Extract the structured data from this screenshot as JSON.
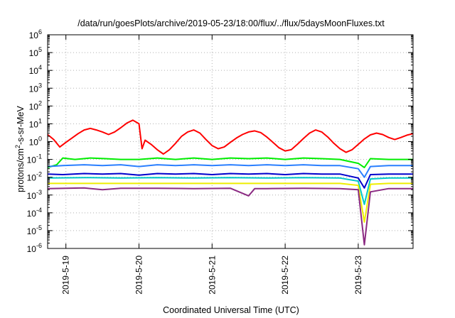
{
  "chart_data": {
    "type": "line",
    "title": "/data/run/goesPlots/archive/2019-05-23/18:00/flux/../flux/5daysMoonFluxes.txt",
    "xlabel": "Coordinated Universal Time (UTC)",
    "ylabel": {
      "prefix": "protons/cm",
      "sup": "2",
      "suffix": "-s-sr-MeV"
    },
    "y_scale": "log",
    "ylim": [
      1e-06,
      1000000.0
    ],
    "y_ticks": [
      {
        "value": 1e-06,
        "base": "10",
        "exp": "-6"
      },
      {
        "value": 1e-05,
        "base": "10",
        "exp": "-5"
      },
      {
        "value": 0.0001,
        "base": "10",
        "exp": "-4"
      },
      {
        "value": 0.001,
        "base": "10",
        "exp": "-3"
      },
      {
        "value": 0.01,
        "base": "10",
        "exp": "-2"
      },
      {
        "value": 0.1,
        "base": "10",
        "exp": "-1"
      },
      {
        "value": 1,
        "base": "10",
        "exp": "0"
      },
      {
        "value": 10,
        "base": "10",
        "exp": "1"
      },
      {
        "value": 100,
        "base": "10",
        "exp": "2"
      },
      {
        "value": 1000,
        "base": "10",
        "exp": "3"
      },
      {
        "value": 10000,
        "base": "10",
        "exp": "4"
      },
      {
        "value": 100000,
        "base": "10",
        "exp": "5"
      },
      {
        "value": 1000000,
        "base": "10",
        "exp": "6"
      }
    ],
    "xlim": [
      "2019-05-18T18:00",
      "2019-05-23T18:00"
    ],
    "x_ticks": [
      {
        "date": "2019-05-19T00:00",
        "label": "2019-5-19"
      },
      {
        "date": "2019-05-20T00:00",
        "label": "2019-5-20"
      },
      {
        "date": "2019-05-21T00:00",
        "label": "2019-5-21"
      },
      {
        "date": "2019-05-22T00:00",
        "label": "2019-5-22"
      },
      {
        "date": "2019-05-23T00:00",
        "label": "2019-5-23"
      }
    ],
    "grid": true,
    "legend": "none",
    "series": [
      {
        "color": "#ff0000",
        "points": [
          [
            "2019-05-18T18:00",
            2.5
          ],
          [
            "2019-05-18T20:00",
            1.3
          ],
          [
            "2019-05-18T22:00",
            0.5
          ],
          [
            "2019-05-19T00:00",
            0.9
          ],
          [
            "2019-05-19T02:00",
            1.6
          ],
          [
            "2019-05-19T04:00",
            2.8
          ],
          [
            "2019-05-19T06:00",
            4.5
          ],
          [
            "2019-05-19T08:00",
            5.5
          ],
          [
            "2019-05-19T10:00",
            4.5
          ],
          [
            "2019-05-19T12:00",
            3.5
          ],
          [
            "2019-05-19T14:00",
            2.5
          ],
          [
            "2019-05-19T16:00",
            3.5
          ],
          [
            "2019-05-19T18:00",
            6
          ],
          [
            "2019-05-19T20:00",
            11
          ],
          [
            "2019-05-19T22:00",
            16
          ],
          [
            "2019-05-20T00:00",
            10
          ],
          [
            "2019-05-20T01:00",
            0.4
          ],
          [
            "2019-05-20T02:00",
            1.2
          ],
          [
            "2019-05-20T04:00",
            0.7
          ],
          [
            "2019-05-20T06:00",
            0.35
          ],
          [
            "2019-05-20T08:00",
            0.2
          ],
          [
            "2019-05-20T10:00",
            0.35
          ],
          [
            "2019-05-20T12:00",
            0.8
          ],
          [
            "2019-05-20T14:00",
            2
          ],
          [
            "2019-05-20T16:00",
            3.5
          ],
          [
            "2019-05-20T18:00",
            4.5
          ],
          [
            "2019-05-20T20:00",
            3
          ],
          [
            "2019-05-20T22:00",
            1.3
          ],
          [
            "2019-05-21T00:00",
            0.6
          ],
          [
            "2019-05-21T02:00",
            0.4
          ],
          [
            "2019-05-21T04:00",
            0.5
          ],
          [
            "2019-05-21T06:00",
            0.9
          ],
          [
            "2019-05-21T08:00",
            1.6
          ],
          [
            "2019-05-21T10:00",
            2.5
          ],
          [
            "2019-05-21T12:00",
            3.5
          ],
          [
            "2019-05-21T14:00",
            4
          ],
          [
            "2019-05-21T16:00",
            3.2
          ],
          [
            "2019-05-21T18:00",
            1.8
          ],
          [
            "2019-05-21T20:00",
            0.9
          ],
          [
            "2019-05-21T22:00",
            0.45
          ],
          [
            "2019-05-22T00:00",
            0.3
          ],
          [
            "2019-05-22T02:00",
            0.35
          ],
          [
            "2019-05-22T04:00",
            0.7
          ],
          [
            "2019-05-22T06:00",
            1.5
          ],
          [
            "2019-05-22T08:00",
            3
          ],
          [
            "2019-05-22T10:00",
            4.5
          ],
          [
            "2019-05-22T12:00",
            3.5
          ],
          [
            "2019-05-22T14:00",
            1.8
          ],
          [
            "2019-05-22T16:00",
            0.8
          ],
          [
            "2019-05-22T18:00",
            0.4
          ],
          [
            "2019-05-22T20:00",
            0.25
          ],
          [
            "2019-05-22T22:00",
            0.35
          ],
          [
            "2019-05-23T00:00",
            0.7
          ],
          [
            "2019-05-23T02:00",
            1.4
          ],
          [
            "2019-05-23T04:00",
            2.4
          ],
          [
            "2019-05-23T06:00",
            3
          ],
          [
            "2019-05-23T08:00",
            2.5
          ],
          [
            "2019-05-23T10:00",
            1.7
          ],
          [
            "2019-05-23T12:00",
            1.3
          ],
          [
            "2019-05-23T14:00",
            1.7
          ],
          [
            "2019-05-23T16:00",
            2.3
          ],
          [
            "2019-05-23T18:00",
            2.8
          ]
        ]
      },
      {
        "color": "#00ee00",
        "points": [
          [
            "2019-05-18T18:00",
            0.035
          ],
          [
            "2019-05-18T21:00",
            0.05
          ],
          [
            "2019-05-18T23:00",
            0.12
          ],
          [
            "2019-05-19T03:00",
            0.1
          ],
          [
            "2019-05-19T08:00",
            0.12
          ],
          [
            "2019-05-19T13:00",
            0.11
          ],
          [
            "2019-05-19T18:00",
            0.1
          ],
          [
            "2019-05-20T00:00",
            0.1
          ],
          [
            "2019-05-20T06:00",
            0.12
          ],
          [
            "2019-05-20T12:00",
            0.1
          ],
          [
            "2019-05-20T18:00",
            0.12
          ],
          [
            "2019-05-21T00:00",
            0.1
          ],
          [
            "2019-05-21T06:00",
            0.12
          ],
          [
            "2019-05-21T12:00",
            0.11
          ],
          [
            "2019-05-21T18:00",
            0.12
          ],
          [
            "2019-05-22T00:00",
            0.1
          ],
          [
            "2019-05-22T06:00",
            0.12
          ],
          [
            "2019-05-22T12:00",
            0.11
          ],
          [
            "2019-05-22T18:00",
            0.1
          ],
          [
            "2019-05-23T00:00",
            0.06
          ],
          [
            "2019-05-23T02:00",
            0.035
          ],
          [
            "2019-05-23T04:00",
            0.11
          ],
          [
            "2019-05-23T10:00",
            0.1
          ],
          [
            "2019-05-23T18:00",
            0.1
          ]
        ]
      },
      {
        "color": "#2a7fff",
        "points": [
          [
            "2019-05-18T18:00",
            0.04
          ],
          [
            "2019-05-18T23:00",
            0.045
          ],
          [
            "2019-05-19T06:00",
            0.05
          ],
          [
            "2019-05-19T12:00",
            0.045
          ],
          [
            "2019-05-19T18:00",
            0.05
          ],
          [
            "2019-05-20T00:00",
            0.04
          ],
          [
            "2019-05-20T06:00",
            0.05
          ],
          [
            "2019-05-20T12:00",
            0.045
          ],
          [
            "2019-05-20T18:00",
            0.05
          ],
          [
            "2019-05-21T00:00",
            0.045
          ],
          [
            "2019-05-21T06:00",
            0.05
          ],
          [
            "2019-05-21T12:00",
            0.045
          ],
          [
            "2019-05-21T18:00",
            0.05
          ],
          [
            "2019-05-22T00:00",
            0.045
          ],
          [
            "2019-05-22T06:00",
            0.05
          ],
          [
            "2019-05-22T12:00",
            0.045
          ],
          [
            "2019-05-22T18:00",
            0.045
          ],
          [
            "2019-05-23T00:00",
            0.03
          ],
          [
            "2019-05-23T02:00",
            0.01
          ],
          [
            "2019-05-23T04:00",
            0.04
          ],
          [
            "2019-05-23T10:00",
            0.045
          ],
          [
            "2019-05-23T18:00",
            0.045
          ]
        ]
      },
      {
        "color": "#0000cc",
        "points": [
          [
            "2019-05-18T18:00",
            0.015
          ],
          [
            "2019-05-18T23:00",
            0.014
          ],
          [
            "2019-05-19T06:00",
            0.016
          ],
          [
            "2019-05-19T12:00",
            0.015
          ],
          [
            "2019-05-19T18:00",
            0.016
          ],
          [
            "2019-05-20T00:00",
            0.013
          ],
          [
            "2019-05-20T06:00",
            0.016
          ],
          [
            "2019-05-20T12:00",
            0.015
          ],
          [
            "2019-05-20T18:00",
            0.016
          ],
          [
            "2019-05-21T00:00",
            0.014
          ],
          [
            "2019-05-21T06:00",
            0.016
          ],
          [
            "2019-05-21T12:00",
            0.015
          ],
          [
            "2019-05-21T18:00",
            0.016
          ],
          [
            "2019-05-22T00:00",
            0.014
          ],
          [
            "2019-05-22T06:00",
            0.016
          ],
          [
            "2019-05-22T12:00",
            0.015
          ],
          [
            "2019-05-22T18:00",
            0.015
          ],
          [
            "2019-05-23T00:00",
            0.009
          ],
          [
            "2019-05-23T02:00",
            0.0025
          ],
          [
            "2019-05-23T04:00",
            0.014
          ],
          [
            "2019-05-23T10:00",
            0.015
          ],
          [
            "2019-05-23T18:00",
            0.015
          ]
        ]
      },
      {
        "color": "#00c8c8",
        "points": [
          [
            "2019-05-18T18:00",
            0.009
          ],
          [
            "2019-05-19T06:00",
            0.0095
          ],
          [
            "2019-05-19T18:00",
            0.009
          ],
          [
            "2019-05-20T06:00",
            0.0095
          ],
          [
            "2019-05-20T18:00",
            0.009
          ],
          [
            "2019-05-21T06:00",
            0.0095
          ],
          [
            "2019-05-21T18:00",
            0.009
          ],
          [
            "2019-05-22T06:00",
            0.0095
          ],
          [
            "2019-05-22T18:00",
            0.009
          ],
          [
            "2019-05-23T00:00",
            0.006
          ],
          [
            "2019-05-23T02:00",
            0.0003
          ],
          [
            "2019-05-23T04:00",
            0.008
          ],
          [
            "2019-05-23T10:00",
            0.009
          ],
          [
            "2019-05-23T18:00",
            0.009
          ]
        ]
      },
      {
        "color": "#eeee00",
        "points": [
          [
            "2019-05-18T18:00",
            0.0045
          ],
          [
            "2019-05-19T06:00",
            0.0045
          ],
          [
            "2019-05-19T18:00",
            0.0045
          ],
          [
            "2019-05-20T06:00",
            0.0045
          ],
          [
            "2019-05-20T18:00",
            0.0045
          ],
          [
            "2019-05-21T06:00",
            0.0045
          ],
          [
            "2019-05-21T18:00",
            0.0045
          ],
          [
            "2019-05-22T06:00",
            0.0045
          ],
          [
            "2019-05-22T18:00",
            0.0045
          ],
          [
            "2019-05-23T00:00",
            0.0035
          ],
          [
            "2019-05-23T02:00",
            3e-05
          ],
          [
            "2019-05-23T04:00",
            0.004
          ],
          [
            "2019-05-23T10:00",
            0.0045
          ],
          [
            "2019-05-23T18:00",
            0.0045
          ]
        ]
      },
      {
        "color": "#8b2a82",
        "points": [
          [
            "2019-05-18T18:00",
            0.0023
          ],
          [
            "2019-05-19T06:00",
            0.0025
          ],
          [
            "2019-05-19T12:00",
            0.002
          ],
          [
            "2019-05-19T18:00",
            0.0024
          ],
          [
            "2019-05-20T06:00",
            0.0024
          ],
          [
            "2019-05-20T18:00",
            0.0023
          ],
          [
            "2019-05-21T06:00",
            0.0024
          ],
          [
            "2019-05-21T12:00",
            0.0009
          ],
          [
            "2019-05-21T14:00",
            0.0023
          ],
          [
            "2019-05-21T18:00",
            0.0023
          ],
          [
            "2019-05-22T06:00",
            0.0024
          ],
          [
            "2019-05-22T18:00",
            0.0023
          ],
          [
            "2019-05-23T00:00",
            0.002
          ],
          [
            "2019-05-23T02:00",
            1.6e-06
          ],
          [
            "2019-05-23T04:00",
            0.0015
          ],
          [
            "2019-05-23T10:00",
            0.0023
          ],
          [
            "2019-05-23T18:00",
            0.0023
          ]
        ]
      }
    ]
  }
}
